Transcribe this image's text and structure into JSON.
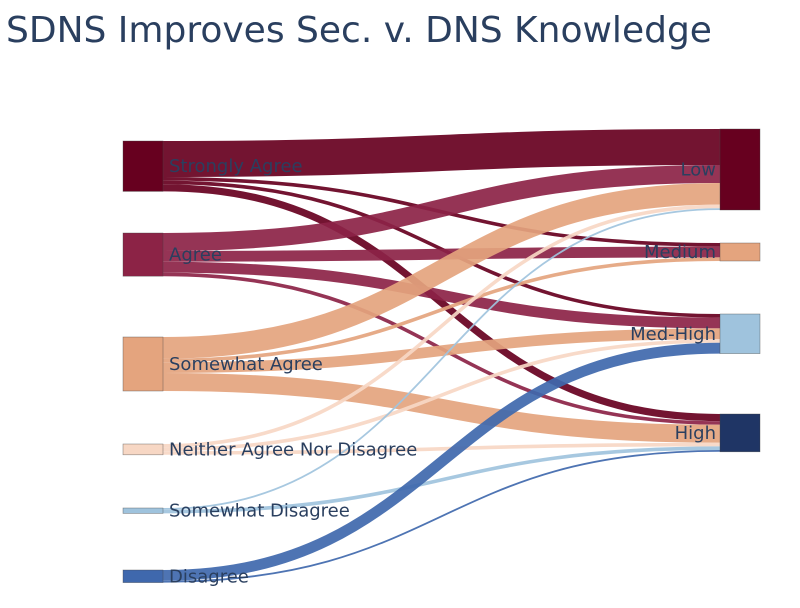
{
  "chart_data": {
    "type": "sankey",
    "title": "SDNS Improves Sec. v. DNS Knowledge",
    "sources": [
      {
        "id": "strongly_agree",
        "label": "Strongly Agree",
        "color": "#67001f"
      },
      {
        "id": "agree",
        "label": "Agree",
        "color": "#8c2346"
      },
      {
        "id": "somewhat_agree",
        "label": "Somewhat Agree",
        "color": "#e4a47e"
      },
      {
        "id": "neither",
        "label": "Neither Agree Nor Disagree",
        "color": "#f7d7c4"
      },
      {
        "id": "somewhat_disagree",
        "label": "Somewhat Disagree",
        "color": "#9fc3dd"
      },
      {
        "id": "disagree",
        "label": "Disagree",
        "color": "#3f68ad"
      }
    ],
    "targets": [
      {
        "id": "low",
        "label": "Low",
        "color": "#67001f"
      },
      {
        "id": "medium",
        "label": "Medium",
        "color": "#e4a47e"
      },
      {
        "id": "med_high",
        "label": "Med-High",
        "color": "#9fc3dd"
      },
      {
        "id": "high",
        "label": "High",
        "color": "#1f3565"
      }
    ],
    "links": [
      {
        "source": "strongly_agree",
        "target": "low",
        "value": 10
      },
      {
        "source": "strongly_agree",
        "target": "medium",
        "value": 1
      },
      {
        "source": "strongly_agree",
        "target": "med_high",
        "value": 1
      },
      {
        "source": "strongly_agree",
        "target": "high",
        "value": 2
      },
      {
        "source": "agree",
        "target": "low",
        "value": 5
      },
      {
        "source": "agree",
        "target": "medium",
        "value": 3
      },
      {
        "source": "agree",
        "target": "med_high",
        "value": 3
      },
      {
        "source": "agree",
        "target": "high",
        "value": 1
      },
      {
        "source": "somewhat_agree",
        "target": "low",
        "value": 6
      },
      {
        "source": "somewhat_agree",
        "target": "medium",
        "value": 1
      },
      {
        "source": "somewhat_agree",
        "target": "med_high",
        "value": 3
      },
      {
        "source": "somewhat_agree",
        "target": "high",
        "value": 5
      },
      {
        "source": "neither",
        "target": "low",
        "value": 1
      },
      {
        "source": "neither",
        "target": "med_high",
        "value": 1
      },
      {
        "source": "neither",
        "target": "high",
        "value": 1
      },
      {
        "source": "somewhat_disagree",
        "target": "low",
        "value": 0.5
      },
      {
        "source": "somewhat_disagree",
        "target": "high",
        "value": 1
      },
      {
        "source": "disagree",
        "target": "med_high",
        "value": 3
      },
      {
        "source": "disagree",
        "target": "high",
        "value": 0.5
      }
    ]
  }
}
